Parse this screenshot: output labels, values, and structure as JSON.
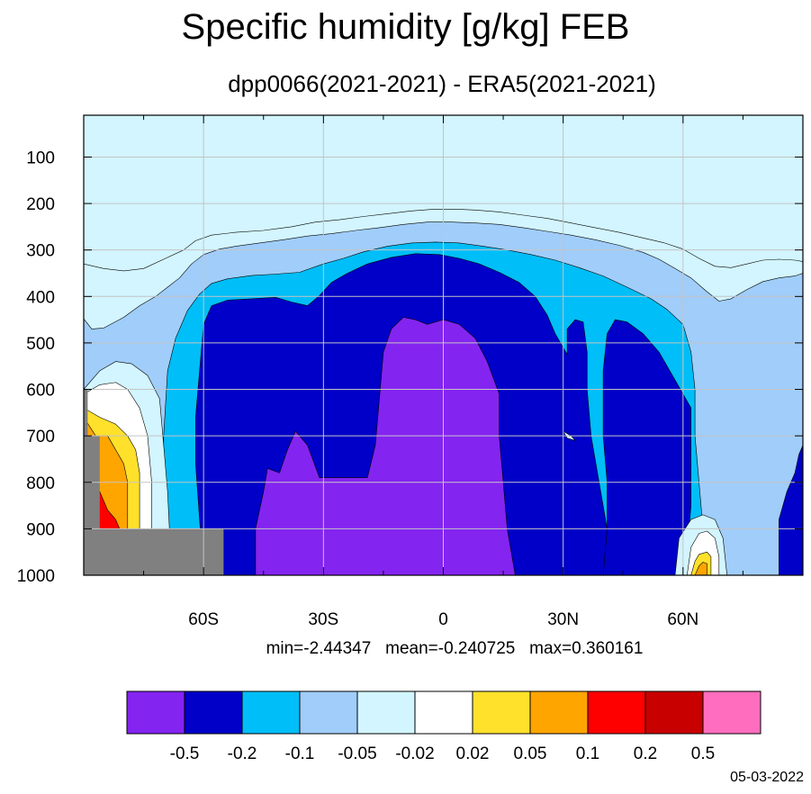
{
  "title": "Specific humidity [g/kg] FEB",
  "subtitle": "dpp0066(2021-2021) - ERA5(2021-2021)",
  "stats": {
    "min_label": "min=-2.44347",
    "mean_label": "mean=-0.240725",
    "max_label": "max=0.360161"
  },
  "date": "05-03-2022",
  "chart_data": {
    "type": "heatmap",
    "x_axis": {
      "ticks": [
        -60,
        -30,
        0,
        30,
        60
      ],
      "tick_labels": [
        "60S",
        "30S",
        "0",
        "30N",
        "60N"
      ],
      "range": [
        -90,
        90
      ]
    },
    "y_axis": {
      "ticks": [
        100,
        200,
        300,
        400,
        500,
        600,
        700,
        800,
        900,
        1000
      ],
      "tick_labels": [
        "100",
        "200",
        "300",
        "400",
        "500",
        "600",
        "700",
        "800",
        "900",
        "1000"
      ],
      "range": [
        10,
        1000
      ],
      "inverted": true
    },
    "grid": true,
    "levels": [
      -0.5,
      -0.2,
      -0.1,
      -0.05,
      -0.02,
      0.02,
      0.05,
      0.1,
      0.2,
      0.5
    ],
    "level_labels": [
      "-0.5",
      "-0.2",
      "-0.1",
      "-0.05",
      "-0.02",
      "0.02",
      "0.05",
      "0.1",
      "0.2",
      "0.5"
    ],
    "colors": [
      "#8424f0",
      "#0000c8",
      "#00bef8",
      "#a0cdfa",
      "#d2f5ff",
      "#ffffff",
      "#ffe12c",
      "#ffa500",
      "#ff0000",
      "#c80000",
      "#ff6ebe"
    ],
    "missing_color": "#808080",
    "contours": [
      {
        "color": "#d2f5ff",
        "points": [
          [
            -90,
            330
          ],
          [
            -85,
            340
          ],
          [
            -80,
            345
          ],
          [
            -75,
            340
          ],
          [
            -70,
            320
          ],
          [
            -65,
            300
          ],
          [
            -62,
            280
          ],
          [
            -58,
            268
          ],
          [
            -52,
            262
          ],
          [
            -45,
            258
          ],
          [
            -38,
            250
          ],
          [
            -32,
            240
          ],
          [
            -26,
            235
          ],
          [
            -20,
            228
          ],
          [
            -14,
            222
          ],
          [
            -8,
            216
          ],
          [
            -2,
            212
          ],
          [
            3,
            212
          ],
          [
            8,
            214
          ],
          [
            14,
            218
          ],
          [
            20,
            225
          ],
          [
            26,
            232
          ],
          [
            32,
            242
          ],
          [
            38,
            252
          ],
          [
            44,
            262
          ],
          [
            50,
            274
          ],
          [
            55,
            284
          ],
          [
            60,
            298
          ],
          [
            64,
            318
          ],
          [
            68,
            335
          ],
          [
            72,
            338
          ],
          [
            76,
            330
          ],
          [
            80,
            322
          ],
          [
            84,
            320
          ],
          [
            88,
            322
          ],
          [
            90,
            325
          ],
          [
            90,
            1000
          ],
          [
            -90,
            1000
          ]
        ]
      },
      {
        "color": "#a0cdfa",
        "points": [
          [
            -90,
            448
          ],
          [
            -88,
            470
          ],
          [
            -85,
            468
          ],
          [
            -80,
            445
          ],
          [
            -76,
            420
          ],
          [
            -72,
            400
          ],
          [
            -69,
            380
          ],
          [
            -66,
            360
          ],
          [
            -63,
            330
          ],
          [
            -60,
            310
          ],
          [
            -56,
            298
          ],
          [
            -52,
            292
          ],
          [
            -46,
            285
          ],
          [
            -40,
            278
          ],
          [
            -34,
            270
          ],
          [
            -28,
            265
          ],
          [
            -22,
            258
          ],
          [
            -16,
            252
          ],
          [
            -10,
            245
          ],
          [
            -4,
            240
          ],
          [
            2,
            240
          ],
          [
            8,
            242
          ],
          [
            14,
            245
          ],
          [
            20,
            252
          ],
          [
            26,
            260
          ],
          [
            32,
            268
          ],
          [
            38,
            278
          ],
          [
            44,
            290
          ],
          [
            50,
            305
          ],
          [
            54,
            320
          ],
          [
            58,
            340
          ],
          [
            62,
            360
          ],
          [
            66,
            390
          ],
          [
            69,
            410
          ],
          [
            72,
            405
          ],
          [
            76,
            385
          ],
          [
            80,
            368
          ],
          [
            84,
            360
          ],
          [
            88,
            356
          ],
          [
            90,
            350
          ],
          [
            90,
            1000
          ],
          [
            -90,
            1000
          ]
        ]
      },
      {
        "color": "#00bef8",
        "points": [
          [
            -70,
            1000
          ],
          [
            -70,
            700
          ],
          [
            -69,
            560
          ],
          [
            -67,
            490
          ],
          [
            -64,
            430
          ],
          [
            -61,
            395
          ],
          [
            -58,
            372
          ],
          [
            -54,
            362
          ],
          [
            -48,
            355
          ],
          [
            -42,
            352
          ],
          [
            -36,
            348
          ],
          [
            -30,
            330
          ],
          [
            -25,
            318
          ],
          [
            -20,
            304
          ],
          [
            -14,
            292
          ],
          [
            -8,
            285
          ],
          [
            -2,
            283
          ],
          [
            4,
            285
          ],
          [
            10,
            292
          ],
          [
            16,
            300
          ],
          [
            22,
            310
          ],
          [
            28,
            322
          ],
          [
            34,
            338
          ],
          [
            40,
            356
          ],
          [
            46,
            380
          ],
          [
            52,
            405
          ],
          [
            56,
            428
          ],
          [
            60,
            460
          ],
          [
            62,
            520
          ],
          [
            63,
            600
          ],
          [
            63,
            700
          ],
          [
            64,
            800
          ],
          [
            65,
            900
          ],
          [
            66,
            1000
          ]
        ]
      },
      {
        "color": "#0000c8",
        "points": [
          [
            -60,
            1000
          ],
          [
            -61,
            880
          ],
          [
            -62,
            760
          ],
          [
            -62,
            660
          ],
          [
            -61,
            560
          ],
          [
            -60,
            460
          ],
          [
            -58,
            420
          ],
          [
            -54,
            408
          ],
          [
            -48,
            405
          ],
          [
            -42,
            402
          ],
          [
            -38,
            412
          ],
          [
            -34,
            420
          ],
          [
            -31,
            398
          ],
          [
            -28,
            370
          ],
          [
            -24,
            350
          ],
          [
            -19,
            330
          ],
          [
            -13,
            316
          ],
          [
            -7,
            308
          ],
          [
            -1,
            310
          ],
          [
            4,
            318
          ],
          [
            9,
            330
          ],
          [
            14,
            348
          ],
          [
            19,
            370
          ],
          [
            23,
            400
          ],
          [
            26,
            440
          ],
          [
            28,
            480
          ],
          [
            31,
            525
          ],
          [
            31,
            470
          ],
          [
            33,
            450
          ],
          [
            35,
            455
          ],
          [
            36,
            520
          ],
          [
            36,
            600
          ],
          [
            37,
            700
          ],
          [
            39,
            800
          ],
          [
            41,
            900
          ],
          [
            43,
            1000
          ]
        ]
      },
      {
        "color": "#0000c8",
        "points": [
          [
            40,
            1000
          ],
          [
            41,
            900
          ],
          [
            41,
            800
          ],
          [
            40,
            700
          ],
          [
            40,
            560
          ],
          [
            41,
            480
          ],
          [
            43,
            450
          ],
          [
            46,
            455
          ],
          [
            50,
            480
          ],
          [
            54,
            520
          ],
          [
            58,
            580
          ],
          [
            62,
            640
          ],
          [
            62,
            750
          ],
          [
            62,
            850
          ],
          [
            61,
            950
          ],
          [
            60,
            1000
          ]
        ]
      },
      {
        "color": "#0000c8",
        "points": [
          [
            84,
            1000
          ],
          [
            84,
            880
          ],
          [
            86,
            820
          ],
          [
            88,
            780
          ],
          [
            89,
            740
          ],
          [
            90,
            720
          ],
          [
            90,
            1000
          ]
        ]
      },
      {
        "color": "#8424f0",
        "points": [
          [
            -47,
            1000
          ],
          [
            -47,
            900
          ],
          [
            -45,
            820
          ],
          [
            -44,
            770
          ],
          [
            -41,
            780
          ],
          [
            -39,
            730
          ],
          [
            -37,
            690
          ],
          [
            -34,
            720
          ],
          [
            -31,
            790
          ],
          [
            -26,
            790
          ],
          [
            -22,
            790
          ],
          [
            -19,
            790
          ],
          [
            -17,
            720
          ],
          [
            -16,
            620
          ],
          [
            -15,
            520
          ],
          [
            -13,
            470
          ],
          [
            -10,
            445
          ],
          [
            -7,
            450
          ],
          [
            -4,
            460
          ],
          [
            0,
            450
          ],
          [
            4,
            460
          ],
          [
            8,
            490
          ],
          [
            11,
            540
          ],
          [
            14,
            610
          ],
          [
            14,
            700
          ],
          [
            15,
            800
          ],
          [
            16,
            900
          ],
          [
            18,
            1000
          ]
        ]
      },
      {
        "color": "#d2f5ff",
        "points": [
          [
            32,
            700
          ],
          [
            30,
            690
          ],
          [
            31,
            705
          ],
          [
            33,
            710
          ]
        ]
      },
      {
        "color": "#d2f5ff",
        "points": [
          [
            -90,
            600
          ],
          [
            -86,
            560
          ],
          [
            -82,
            540
          ],
          [
            -78,
            545
          ],
          [
            -74,
            570
          ],
          [
            -71,
            620
          ],
          [
            -70,
            720
          ],
          [
            -69,
            820
          ],
          [
            -68,
            1000
          ],
          [
            -90,
            1000
          ]
        ]
      },
      {
        "color": "#ffffff",
        "points": [
          [
            -90,
            610
          ],
          [
            -86,
            590
          ],
          [
            -82,
            585
          ],
          [
            -79,
            600
          ],
          [
            -76,
            640
          ],
          [
            -74,
            700
          ],
          [
            -73,
            800
          ],
          [
            -73,
            900
          ],
          [
            -72,
            1000
          ],
          [
            -90,
            1000
          ]
        ]
      },
      {
        "color": "#ffe12c",
        "points": [
          [
            -90,
            640
          ],
          [
            -86,
            660
          ],
          [
            -82,
            675
          ],
          [
            -79,
            700
          ],
          [
            -77,
            730
          ],
          [
            -76,
            780
          ],
          [
            -76,
            840
          ],
          [
            -76,
            900
          ],
          [
            -90,
            900
          ]
        ]
      },
      {
        "color": "#ffa500",
        "points": [
          [
            -90,
            660
          ],
          [
            -87,
            700
          ],
          [
            -84,
            700
          ],
          [
            -82,
            730
          ],
          [
            -80,
            760
          ],
          [
            -79,
            800
          ],
          [
            -79,
            850
          ],
          [
            -79,
            900
          ],
          [
            -90,
            900
          ]
        ]
      },
      {
        "color": "#ff0000",
        "points": [
          [
            -90,
            740
          ],
          [
            -88,
            780
          ],
          [
            -86,
            820
          ],
          [
            -84,
            860
          ],
          [
            -82,
            880
          ],
          [
            -81,
            900
          ],
          [
            -81,
            930
          ],
          [
            -90,
            930
          ]
        ]
      },
      {
        "color": "#d2f5ff",
        "points": [
          [
            58,
            1000
          ],
          [
            59,
            920
          ],
          [
            62,
            880
          ],
          [
            65,
            870
          ],
          [
            68,
            880
          ],
          [
            70,
            920
          ],
          [
            71,
            1000
          ]
        ]
      },
      {
        "color": "#ffffff",
        "points": [
          [
            61,
            1000
          ],
          [
            62,
            940
          ],
          [
            64,
            910
          ],
          [
            66,
            905
          ],
          [
            68,
            920
          ],
          [
            69,
            960
          ],
          [
            69,
            1000
          ]
        ]
      },
      {
        "color": "#ffe12c",
        "points": [
          [
            62,
            1000
          ],
          [
            63,
            970
          ],
          [
            64,
            955
          ],
          [
            66,
            950
          ],
          [
            67,
            960
          ],
          [
            67,
            1000
          ]
        ]
      },
      {
        "color": "#ffa500",
        "points": [
          [
            63,
            1000
          ],
          [
            64,
            980
          ],
          [
            65,
            972
          ],
          [
            66,
            975
          ],
          [
            66,
            1000
          ]
        ]
      }
    ],
    "missing_regions": [
      [
        [
          -90,
          600
        ],
        [
          -89,
          600
        ],
        [
          -89,
          700
        ],
        [
          -86,
          700
        ],
        [
          -86,
          900
        ],
        [
          -90,
          900
        ]
      ],
      [
        [
          -90,
          900
        ],
        [
          -55,
          900
        ],
        [
          -55,
          1000
        ],
        [
          -90,
          1000
        ]
      ]
    ]
  }
}
